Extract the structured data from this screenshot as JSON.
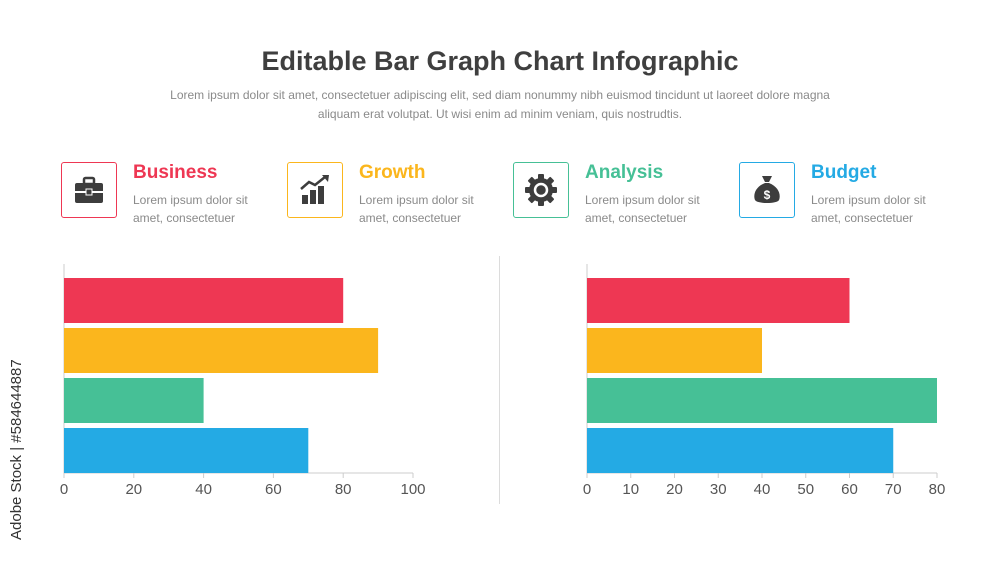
{
  "header": {
    "title": "Editable Bar Graph Chart Infographic",
    "subtitle": "Lorem ipsum dolor sit amet, consectetuer adipiscing elit, sed diam nonummy nibh euismod tincidunt ut laoreet dolore magna aliquam erat volutpat. Ut wisi enim ad minim veniam, quis nostrudtis."
  },
  "cards": [
    {
      "title": "Business",
      "desc": "Lorem ipsum dolor sit amet, consectetuer",
      "color": "#ee3753",
      "icon": "briefcase-icon"
    },
    {
      "title": "Growth",
      "desc": "Lorem ipsum dolor sit amet, consectetuer",
      "color": "#fbb61d",
      "icon": "growth-chart-icon"
    },
    {
      "title": "Analysis",
      "desc": "Lorem ipsum dolor sit amet, consectetuer",
      "color": "#46c096",
      "icon": "gear-icon"
    },
    {
      "title": "Budget",
      "desc": "Lorem ipsum dolor sit amet, consectetuer",
      "color": "#24aae4",
      "icon": "money-bag-icon"
    }
  ],
  "watermark": "Adobe Stock | #584644887",
  "chart_data": [
    {
      "type": "bar",
      "orientation": "horizontal",
      "categories": [
        "Business",
        "Growth",
        "Analysis",
        "Budget"
      ],
      "values": [
        80,
        90,
        40,
        70
      ],
      "colors": [
        "#ee3753",
        "#fbb61d",
        "#46c096",
        "#24aae4"
      ],
      "xlim": [
        0,
        100
      ],
      "xticks": [
        0,
        20,
        40,
        60,
        80,
        100
      ],
      "grid": false
    },
    {
      "type": "bar",
      "orientation": "horizontal",
      "categories": [
        "Business",
        "Growth",
        "Analysis",
        "Budget"
      ],
      "values": [
        60,
        40,
        80,
        70
      ],
      "colors": [
        "#ee3753",
        "#fbb61d",
        "#46c096",
        "#24aae4"
      ],
      "xlim": [
        0,
        80
      ],
      "xticks": [
        0,
        10,
        20,
        30,
        40,
        50,
        60,
        70,
        80
      ],
      "grid": false
    }
  ]
}
